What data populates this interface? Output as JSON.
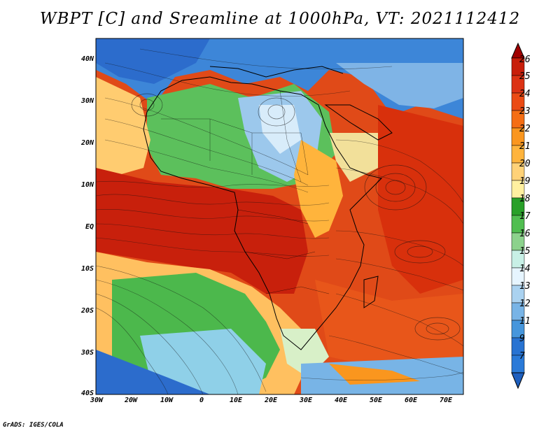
{
  "title": "WBPT [C] and Sreamline at 1000hPa, VT: 2021112412",
  "credit": "GrADS: IGES/COLA",
  "map": {
    "lat_ticks": [
      "40N",
      "30N",
      "20N",
      "10N",
      "EQ",
      "10S",
      "20S",
      "30S",
      "40S"
    ],
    "lon_ticks": [
      "30W",
      "20W",
      "10W",
      "0",
      "10E",
      "20E",
      "30E",
      "40E",
      "50E",
      "60E",
      "70E"
    ]
  },
  "colorbar": {
    "labels": [
      "26",
      "25",
      "24",
      "23",
      "22",
      "21",
      "20",
      "19",
      "18",
      "17",
      "16",
      "15",
      "14",
      "13",
      "12",
      "11",
      "9",
      "7"
    ],
    "colors": [
      "#a00000",
      "#c81e0a",
      "#dc3214",
      "#eb4b14",
      "#f56e14",
      "#fa961e",
      "#ffb43c",
      "#ffd278",
      "#fff0a0",
      "#28a028",
      "#50be50",
      "#8cd28c",
      "#c8f0e6",
      "#e6f5ff",
      "#aad2f0",
      "#78b4e6",
      "#4696dc",
      "#2873d2",
      "#1e5fbe"
    ]
  }
}
